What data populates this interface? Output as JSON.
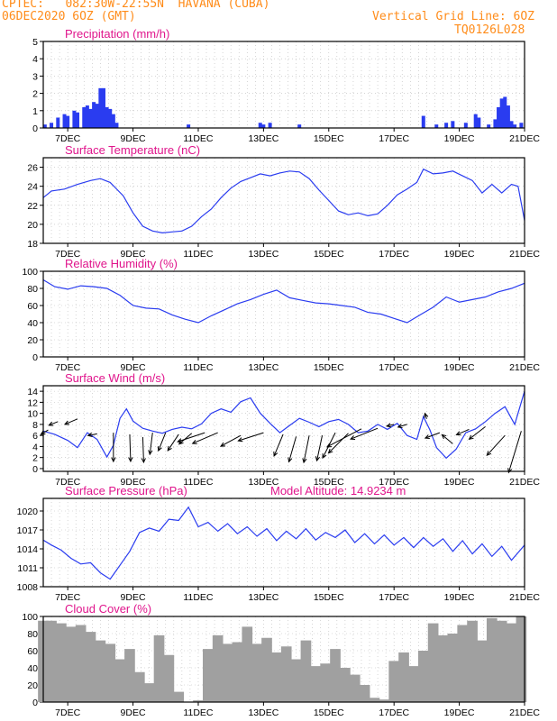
{
  "header": {
    "line1": "CPTEC:   082:30W-22:55N  HAVANA (CUBA)",
    "line2": "06DEC2020 6OZ (GMT)",
    "grid_note": "Vertical Grid Line: 6OZ",
    "code": "TQ0126L028"
  },
  "colors": {
    "header": "#ff8c1a",
    "title": "#e0158c",
    "line": "#2a3cf0",
    "cloud": "#a0a0a0",
    "grid": "#bbbbbb"
  },
  "x_axis": {
    "ticks": [
      {
        "day": 7,
        "label": "7DEC"
      },
      {
        "day": 9,
        "label": "9DEC"
      },
      {
        "day": 11,
        "label": "11DEC"
      },
      {
        "day": 13,
        "label": "13DEC"
      },
      {
        "day": 15,
        "label": "15DEC"
      },
      {
        "day": 17,
        "label": "17DEC"
      },
      {
        "day": 19,
        "label": "19DEC"
      },
      {
        "day": 21,
        "label": "21DEC"
      }
    ],
    "range": [
      6.25,
      21.0
    ]
  },
  "panels": [
    {
      "key": "precip",
      "title": "Precipitation (mm/h)",
      "yticks": [
        "0",
        "1",
        "2",
        "3",
        "4",
        "5"
      ],
      "ylim": [
        0,
        5
      ]
    },
    {
      "key": "temp",
      "title": "Surface Temperature (nC)",
      "yticks": [
        "18",
        "20",
        "22",
        "24",
        "26"
      ],
      "ylim": [
        18,
        27
      ]
    },
    {
      "key": "rh",
      "title": "Relative Humidity (%)",
      "yticks": [
        "0",
        "20",
        "40",
        "60",
        "80",
        "100"
      ],
      "ylim": [
        0,
        100
      ]
    },
    {
      "key": "wind",
      "title": "Surface Wind (m/s)",
      "yticks": [
        "0",
        "2",
        "4",
        "6",
        "8",
        "10",
        "12",
        "14"
      ],
      "ylim": [
        -0.5,
        15
      ]
    },
    {
      "key": "press",
      "title": "Surface Pressure (hPa)",
      "extra": "Model Altitude: 14.9234 m",
      "yticks": [
        "1008",
        "1011",
        "1014",
        "1017",
        "1020"
      ],
      "ylim": [
        1008,
        1022
      ]
    },
    {
      "key": "cloud",
      "title": "Cloud Cover (%)",
      "yticks": [
        "0",
        "20",
        "40",
        "60",
        "80",
        "100"
      ],
      "ylim": [
        0,
        100
      ]
    }
  ],
  "chart_data": [
    {
      "type": "bar",
      "title": "Precipitation (mm/h)",
      "x": [
        6.3,
        6.5,
        6.7,
        6.9,
        7.0,
        7.2,
        7.3,
        7.5,
        7.6,
        7.7,
        7.8,
        7.9,
        8.0,
        8.1,
        8.2,
        8.3,
        8.4,
        8.5,
        10.7,
        12.9,
        13.0,
        13.2,
        14.1,
        17.9,
        18.3,
        18.6,
        18.8,
        19.2,
        19.5,
        19.6,
        19.9,
        20.1,
        20.2,
        20.3,
        20.4,
        20.5,
        20.6,
        20.7,
        20.9
      ],
      "y": [
        0.2,
        0.3,
        0.6,
        0.8,
        0.7,
        1.0,
        0.9,
        1.2,
        1.3,
        1.1,
        1.5,
        1.4,
        2.3,
        2.3,
        1.2,
        1.1,
        0.8,
        0.3,
        0.2,
        0.3,
        0.2,
        0.3,
        0.2,
        0.7,
        0.2,
        0.3,
        0.4,
        0.3,
        0.8,
        0.6,
        0.2,
        0.5,
        1.2,
        1.7,
        1.8,
        1.3,
        0.4,
        0.2,
        0.3
      ]
    },
    {
      "type": "line",
      "title": "Surface Temperature (nC)",
      "x": [
        6.25,
        6.5,
        6.9,
        7.3,
        7.7,
        8.0,
        8.3,
        8.7,
        9.0,
        9.3,
        9.6,
        9.9,
        10.2,
        10.5,
        10.8,
        11.1,
        11.4,
        11.7,
        12.0,
        12.3,
        12.6,
        12.9,
        13.2,
        13.5,
        13.8,
        14.1,
        14.4,
        14.7,
        15.0,
        15.3,
        15.6,
        15.9,
        16.2,
        16.5,
        16.8,
        17.1,
        17.4,
        17.7,
        17.9,
        18.2,
        18.5,
        18.8,
        19.1,
        19.4,
        19.7,
        20.0,
        20.3,
        20.6,
        20.8,
        21.0
      ],
      "y": [
        22.8,
        23.5,
        23.7,
        24.2,
        24.6,
        24.8,
        24.4,
        23.0,
        21.2,
        19.8,
        19.3,
        19.1,
        19.2,
        19.3,
        19.8,
        20.8,
        21.6,
        22.8,
        23.8,
        24.5,
        24.9,
        25.3,
        25.1,
        25.4,
        25.6,
        25.5,
        24.8,
        23.6,
        22.5,
        21.4,
        21.0,
        21.2,
        20.9,
        21.1,
        22.0,
        23.1,
        23.7,
        24.4,
        25.8,
        25.3,
        25.4,
        25.6,
        25.1,
        24.6,
        23.3,
        24.2,
        23.3,
        24.2,
        24.0,
        20.4
      ]
    },
    {
      "type": "line",
      "title": "Relative Humidity (%)",
      "x": [
        6.25,
        6.6,
        7.0,
        7.4,
        7.8,
        8.2,
        8.6,
        9.0,
        9.4,
        9.8,
        10.2,
        10.6,
        11.0,
        11.4,
        11.8,
        12.2,
        12.6,
        13.0,
        13.4,
        13.8,
        14.2,
        14.6,
        15.0,
        15.4,
        15.8,
        16.2,
        16.6,
        17.0,
        17.4,
        17.8,
        18.2,
        18.6,
        19.0,
        19.4,
        19.8,
        20.2,
        20.6,
        21.0
      ],
      "y": [
        90,
        82,
        79,
        83,
        82,
        80,
        72,
        60,
        57,
        56,
        49,
        44,
        40,
        48,
        55,
        62,
        67,
        73,
        78,
        69,
        66,
        63,
        62,
        60,
        58,
        52,
        50,
        45,
        40,
        49,
        58,
        70,
        64,
        67,
        70,
        76,
        80,
        86
      ]
    },
    {
      "type": "line",
      "title": "Surface Wind (m/s)",
      "x": [
        6.25,
        6.6,
        7.0,
        7.3,
        7.6,
        7.9,
        8.2,
        8.4,
        8.6,
        8.8,
        9.0,
        9.3,
        9.6,
        9.9,
        10.2,
        10.5,
        10.8,
        11.1,
        11.4,
        11.7,
        12.0,
        12.3,
        12.6,
        12.9,
        13.2,
        13.5,
        13.8,
        14.1,
        14.4,
        14.7,
        15.0,
        15.3,
        15.6,
        15.9,
        16.2,
        16.5,
        16.8,
        17.1,
        17.4,
        17.7,
        17.9,
        18.1,
        18.3,
        18.6,
        18.9,
        19.2,
        19.5,
        19.8,
        20.1,
        20.4,
        20.7,
        21.0
      ],
      "y": [
        6.8,
        6.2,
        5.1,
        3.8,
        6.5,
        5.3,
        2.1,
        4.2,
        9.1,
        10.8,
        8.6,
        7.3,
        6.8,
        6.4,
        7.1,
        7.5,
        7.2,
        8.1,
        10.0,
        10.8,
        10.2,
        12.1,
        12.8,
        10.0,
        8.2,
        6.5,
        7.8,
        9.1,
        8.4,
        7.6,
        8.5,
        8.9,
        8.0,
        6.5,
        6.8,
        8.0,
        7.1,
        8.2,
        6.0,
        5.3,
        9.4,
        7.0,
        3.8,
        1.9,
        3.5,
        6.5,
        7.2,
        8.5,
        10.0,
        11.2,
        8.0,
        14.0
      ]
    },
    {
      "type": "line",
      "title": "Surface Pressure (hPa)",
      "x": [
        6.25,
        6.5,
        6.8,
        7.1,
        7.4,
        7.7,
        8.0,
        8.3,
        8.6,
        8.9,
        9.2,
        9.5,
        9.8,
        10.1,
        10.4,
        10.7,
        11.0,
        11.3,
        11.6,
        11.9,
        12.2,
        12.5,
        12.8,
        13.1,
        13.4,
        13.7,
        14.0,
        14.3,
        14.6,
        14.9,
        15.2,
        15.5,
        15.8,
        16.1,
        16.4,
        16.7,
        17.0,
        17.3,
        17.6,
        17.9,
        18.2,
        18.5,
        18.8,
        19.1,
        19.4,
        19.7,
        20.0,
        20.3,
        20.6,
        20.9,
        21.0
      ],
      "y": [
        1015.4,
        1014.6,
        1013.8,
        1012.5,
        1011.6,
        1011.8,
        1010.2,
        1009.2,
        1011.4,
        1013.6,
        1016.6,
        1017.3,
        1016.8,
        1018.7,
        1018.5,
        1020.6,
        1017.5,
        1018.2,
        1016.8,
        1018.0,
        1016.4,
        1017.5,
        1016.0,
        1017.2,
        1015.3,
        1016.8,
        1015.6,
        1017.2,
        1015.4,
        1016.6,
        1015.8,
        1017.0,
        1015.0,
        1016.4,
        1014.8,
        1016.2,
        1014.6,
        1015.8,
        1014.2,
        1015.8,
        1014.4,
        1015.6,
        1013.6,
        1015.3,
        1013.2,
        1014.8,
        1012.8,
        1014.4,
        1012.2,
        1014.0,
        1014.6
      ]
    },
    {
      "type": "bar",
      "title": "Cloud Cover (%)",
      "x": [
        6.25,
        6.5,
        6.8,
        7.1,
        7.4,
        7.7,
        8.0,
        8.3,
        8.6,
        8.9,
        9.2,
        9.5,
        9.8,
        10.1,
        10.4,
        10.7,
        11.0,
        11.3,
        11.6,
        11.9,
        12.2,
        12.5,
        12.8,
        13.1,
        13.4,
        13.7,
        14.0,
        14.3,
        14.6,
        14.9,
        15.2,
        15.5,
        15.8,
        16.1,
        16.4,
        16.7,
        17.0,
        17.3,
        17.6,
        17.9,
        18.2,
        18.5,
        18.8,
        19.1,
        19.4,
        19.7,
        20.0,
        20.3,
        20.6,
        20.9
      ],
      "y": [
        95,
        95,
        92,
        88,
        90,
        82,
        72,
        68,
        50,
        62,
        35,
        22,
        78,
        55,
        12,
        0,
        2,
        62,
        78,
        68,
        70,
        88,
        68,
        75,
        58,
        65,
        50,
        72,
        42,
        45,
        62,
        40,
        32,
        20,
        5,
        3,
        48,
        58,
        42,
        60,
        92,
        78,
        80,
        90,
        95,
        72,
        98,
        95,
        92,
        100
      ]
    }
  ]
}
